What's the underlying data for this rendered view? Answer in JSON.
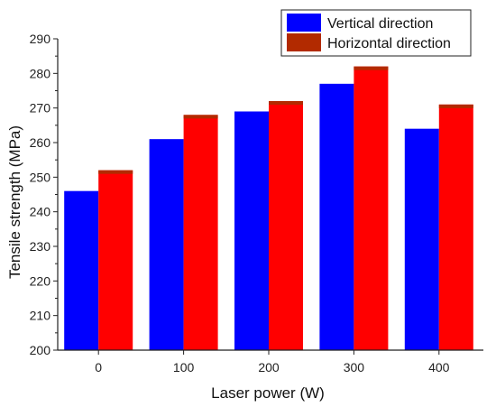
{
  "chart_data": {
    "type": "bar",
    "categories": [
      "0",
      "100",
      "200",
      "300",
      "400"
    ],
    "series": [
      {
        "name": "Vertical direction",
        "color": "#0000ff",
        "values": [
          246,
          261,
          269,
          277,
          264
        ]
      },
      {
        "name": "Horizontal direction",
        "color": "#ff0000",
        "top_color": "#b22a00",
        "values": [
          252,
          268,
          272,
          282,
          271
        ]
      }
    ],
    "xlabel": "Laser power (W)",
    "ylabel": "Tensile strength (MPa)",
    "ylim": [
      200,
      290
    ],
    "yticks": [
      200,
      210,
      220,
      230,
      240,
      250,
      260,
      270,
      280,
      290
    ],
    "legend_position": "top-right",
    "grid": false
  }
}
